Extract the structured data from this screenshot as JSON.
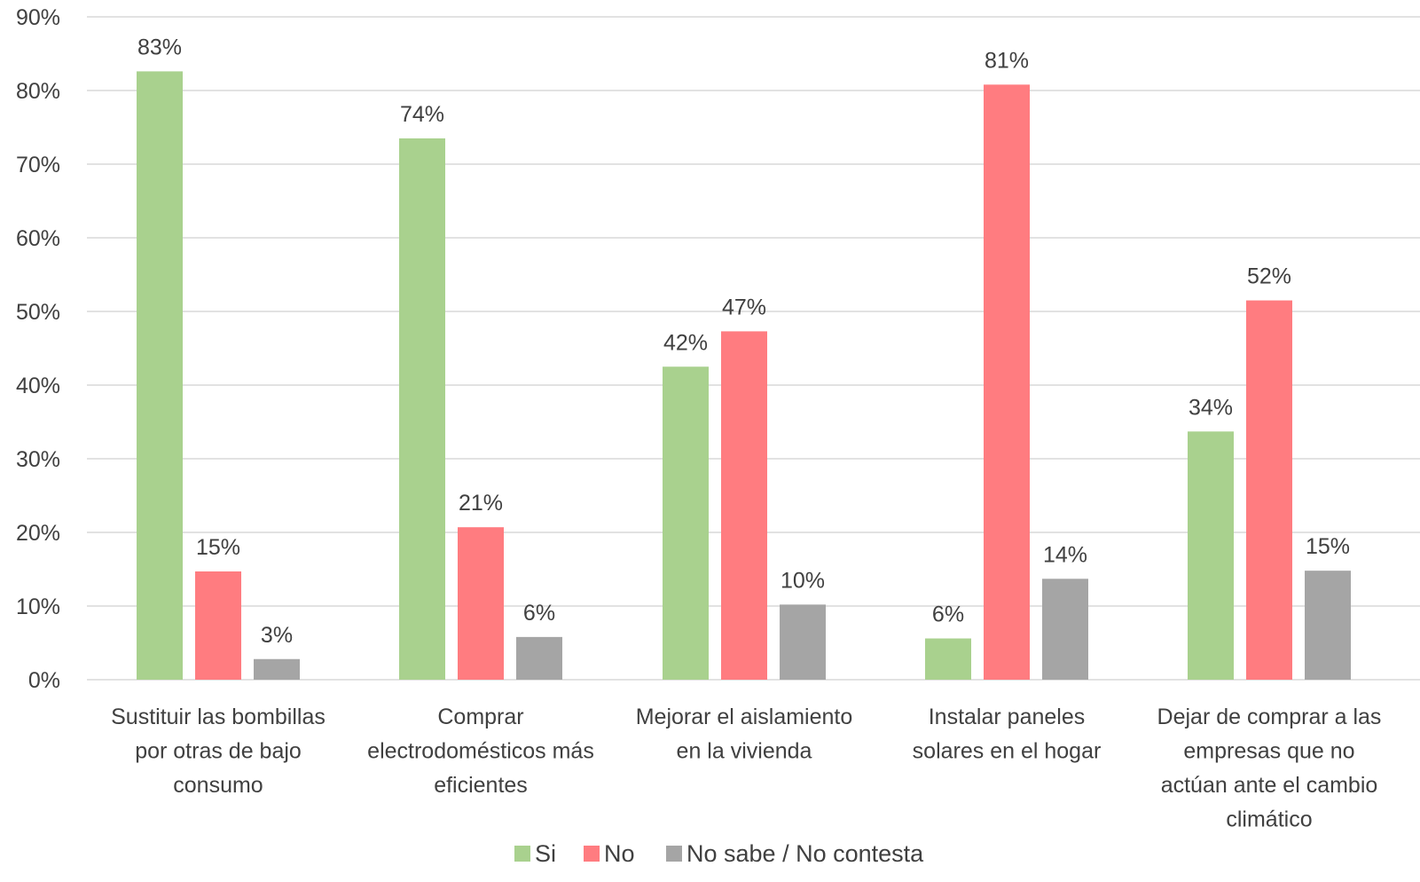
{
  "chart_data": {
    "type": "bar",
    "title": "",
    "xlabel": "",
    "ylabel": "",
    "ylim": [
      0,
      0.9
    ],
    "y_ticks": [
      0,
      0.1,
      0.2,
      0.3,
      0.4,
      0.5,
      0.6,
      0.7,
      0.8,
      0.9
    ],
    "y_tick_labels": [
      "0%",
      "10%",
      "20%",
      "30%",
      "40%",
      "50%",
      "60%",
      "70%",
      "80%",
      "90%"
    ],
    "grid": true,
    "legend_position": "bottom",
    "categories": [
      [
        "Sustituir las bombillas",
        "por otras de bajo",
        "consumo"
      ],
      [
        "Comprar",
        "electrodomésticos más",
        "eficientes"
      ],
      [
        "Mejorar el aislamiento",
        "en la vivienda"
      ],
      [
        "Instalar paneles",
        "solares en el hogar"
      ],
      [
        "Dejar de comprar a las",
        "empresas que no",
        "actúan ante el cambio",
        "climático"
      ]
    ],
    "series": [
      {
        "name": "Si",
        "color": "#a9d18e",
        "values": [
          0.826,
          0.735,
          0.425,
          0.056,
          0.337
        ],
        "labels": [
          "83%",
          "74%",
          "42%",
          "6%",
          "34%"
        ]
      },
      {
        "name": "No",
        "color": "#ff7c80",
        "values": [
          0.147,
          0.207,
          0.473,
          0.808,
          0.515
        ],
        "labels": [
          "15%",
          "21%",
          "47%",
          "81%",
          "52%"
        ]
      },
      {
        "name": "No sabe / No contesta",
        "color": "#a5a5a5",
        "values": [
          0.028,
          0.058,
          0.102,
          0.137,
          0.148
        ],
        "labels": [
          "3%",
          "6%",
          "10%",
          "14%",
          "15%"
        ]
      }
    ]
  }
}
